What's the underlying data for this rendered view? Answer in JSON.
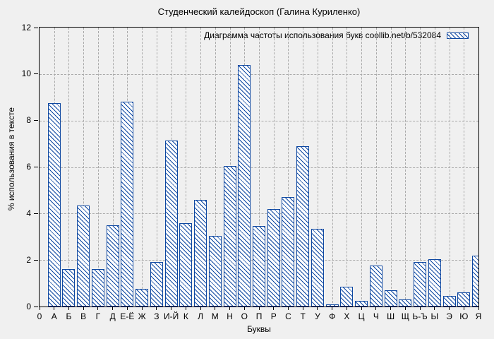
{
  "title": "Студенческий калейдоскоп (Галина Куриленко)",
  "legend": {
    "label": "Диаграмма частоты использования букв  coollib.net/b/532084"
  },
  "axes": {
    "y_title": "% использования в тексте",
    "x_title": "Буквы",
    "y_ticks": [
      0,
      2,
      4,
      6,
      8,
      10,
      12
    ],
    "x_origin_label": "0"
  },
  "chart_data": {
    "type": "bar",
    "title": "Студенческий калейдоскоп (Галина Куриленко)",
    "legend_label": "Диаграмма частоты использования букв  coollib.net/b/532084",
    "categories": [
      "А",
      "Б",
      "В",
      "Г",
      "Д",
      "Е-Ё",
      "Ж",
      "З",
      "И-Й",
      "К",
      "Л",
      "М",
      "Н",
      "О",
      "П",
      "Р",
      "С",
      "Т",
      "У",
      "Ф",
      "Х",
      "Ц",
      "Ч",
      "Ш",
      "Щ",
      "Ь-Ъ",
      "Ы",
      "Э",
      "Ю",
      "Я"
    ],
    "values": [
      8.75,
      1.6,
      4.35,
      1.6,
      3.5,
      8.8,
      0.75,
      1.9,
      7.15,
      3.6,
      4.6,
      3.05,
      6.05,
      10.4,
      3.45,
      4.2,
      4.7,
      6.9,
      3.35,
      0.1,
      0.85,
      0.25,
      1.75,
      0.7,
      0.3,
      1.9,
      2.05,
      0.45,
      0.6,
      2.2
    ],
    "xlabel": "Буквы",
    "ylabel": "% использования в тексте",
    "ylim": [
      0,
      12
    ],
    "grid": true,
    "legend_position": "top-right",
    "bar_style": "hatched-diagonal"
  },
  "colors": {
    "background": "#f0f0f0",
    "bar_edge": "#0d47a1",
    "bar_fill": "#ffffff",
    "grid": "#a9a9a9",
    "frame": "#000000",
    "text": "#000000"
  }
}
